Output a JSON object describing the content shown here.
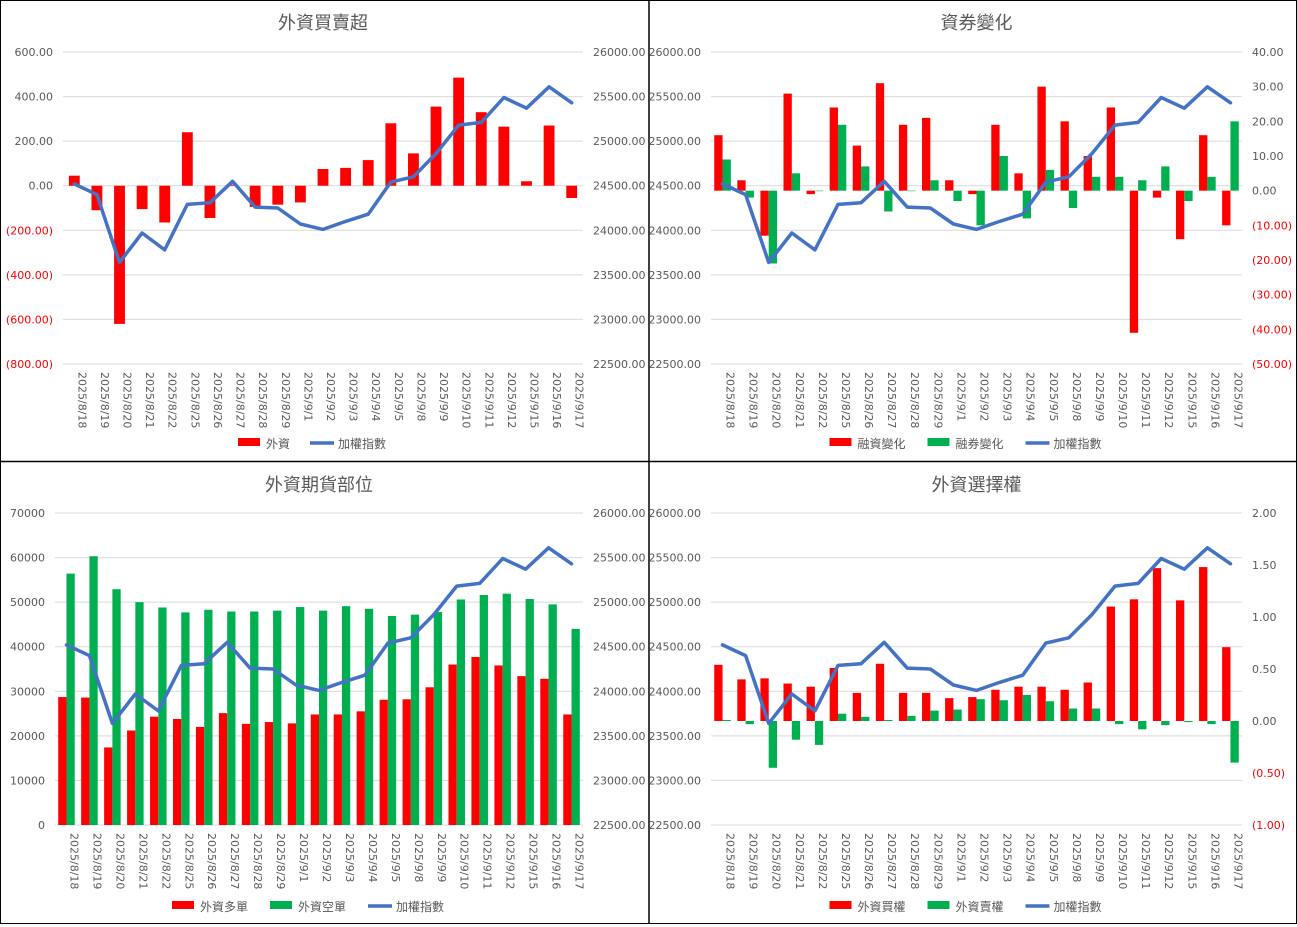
{
  "index_label": "加權指數",
  "dates": [
    "2025/8/18",
    "2025/8/19",
    "2025/8/20",
    "2025/8/21",
    "2025/8/22",
    "2025/8/25",
    "2025/8/26",
    "2025/8/27",
    "2025/8/28",
    "2025/8/29",
    "2025/9/1",
    "2025/9/2",
    "2025/9/3",
    "2025/9/4",
    "2025/9/5",
    "2025/9/8",
    "2025/9/9",
    "2025/9/10",
    "2025/9/11",
    "2025/9/12",
    "2025/9/15",
    "2025/9/16",
    "2025/9/17"
  ],
  "colors": {
    "red": "#ff0000",
    "green": "#00b050",
    "blue": "#4472c4",
    "neg_tick": "#ff0000",
    "tick": "#595959",
    "grid": "#d9d9d9",
    "border": "#000000"
  },
  "chart_data": [
    {
      "type": "bar",
      "title": "外資買賣超",
      "left_axis": {
        "min": -800,
        "max": 600,
        "step": 200,
        "format": "acct2",
        "ticks": [
          "600.00",
          "400.00",
          "200.00",
          "0.00",
          "(200.00)",
          "(400.00)",
          "(600.00)",
          "(800.00)"
        ]
      },
      "right_axis": {
        "min": 22500,
        "max": 26000,
        "step": 500,
        "ticks": [
          "26000.00",
          "25500.00",
          "25000.00",
          "24500.00",
          "24000.00",
          "23500.00",
          "23000.00",
          "22500.00"
        ]
      },
      "series": [
        {
          "name": "外資",
          "kind": "bar",
          "color": "red",
          "axis": "left",
          "values": [
            45,
            -110,
            -620,
            -105,
            -165,
            240,
            -145,
            5,
            -95,
            -85,
            -75,
            75,
            80,
            115,
            280,
            145,
            355,
            485,
            330,
            265,
            20,
            270,
            -55
          ]
        }
      ],
      "line": {
        "name": "加權指數",
        "axis": "right",
        "values": [
          24520,
          24400,
          23640,
          23970,
          23780,
          24290,
          24310,
          24550,
          24260,
          24250,
          24070,
          24010,
          24100,
          24180,
          24540,
          24600,
          24860,
          25180,
          25210,
          25490,
          25370,
          25610,
          25430
        ]
      },
      "legend": [
        "外資",
        "加權指數"
      ]
    },
    {
      "type": "bar",
      "title": "資券變化",
      "left_axis": {
        "min": 22500,
        "max": 26000,
        "step": 500,
        "ticks": [
          "26000.00",
          "25500.00",
          "25000.00",
          "24500.00",
          "24000.00",
          "23500.00",
          "23000.00",
          "22500.00"
        ]
      },
      "right_axis": {
        "min": -50,
        "max": 40,
        "step": 10,
        "format": "acct2",
        "ticks": [
          "40.00",
          "30.00",
          "20.00",
          "10.00",
          "0.00",
          "(10.00)",
          "(20.00)",
          "(30.00)",
          "(40.00)",
          "(50.00)"
        ]
      },
      "series": [
        {
          "name": "融資變化",
          "kind": "bar",
          "color": "red",
          "axis": "right",
          "values": [
            16,
            3,
            -13,
            28,
            -1,
            24,
            13,
            31,
            19,
            21,
            3,
            -1,
            19,
            5,
            30,
            20,
            10,
            24,
            -41,
            -2,
            -14,
            16,
            -10
          ]
        },
        {
          "name": "融券變化",
          "kind": "bar",
          "color": "green",
          "axis": "right",
          "values": [
            9,
            -2,
            -21,
            5,
            0,
            19,
            7,
            -6,
            0,
            3,
            -3,
            -10,
            10,
            -8,
            6,
            -5,
            4,
            4,
            3,
            7,
            -3,
            4,
            20
          ]
        }
      ],
      "line": {
        "name": "加權指數",
        "axis": "left",
        "values": [
          24520,
          24400,
          23640,
          23970,
          23780,
          24290,
          24310,
          24550,
          24260,
          24250,
          24070,
          24010,
          24100,
          24180,
          24540,
          24600,
          24860,
          25180,
          25210,
          25490,
          25370,
          25610,
          25430
        ]
      },
      "legend": [
        "融資變化",
        "融券變化",
        "加權指數"
      ]
    },
    {
      "type": "bar",
      "title": "外資期貨部位",
      "left_axis": {
        "min": 0,
        "max": 70000,
        "step": 10000,
        "ticks": [
          "70000",
          "60000",
          "50000",
          "40000",
          "30000",
          "20000",
          "10000",
          "0"
        ]
      },
      "right_axis": {
        "min": 22500,
        "max": 26000,
        "step": 500,
        "ticks": [
          "26000.00",
          "25500.00",
          "25000.00",
          "24500.00",
          "24000.00",
          "23500.00",
          "23000.00",
          "22500.00"
        ]
      },
      "series": [
        {
          "name": "外資多單",
          "kind": "bar",
          "color": "red",
          "axis": "left",
          "values": [
            28700,
            28600,
            17400,
            21200,
            24300,
            23800,
            22000,
            25100,
            22700,
            23100,
            22800,
            24800,
            24800,
            25500,
            28100,
            28200,
            30900,
            36000,
            37700,
            35800,
            33400,
            32800,
            24800
          ]
        },
        {
          "name": "外資空單",
          "kind": "bar",
          "color": "green",
          "axis": "left",
          "values": [
            56400,
            60300,
            52900,
            50000,
            48800,
            47700,
            48300,
            47900,
            47900,
            48100,
            48900,
            48100,
            49100,
            48500,
            46900,
            47200,
            47800,
            50600,
            51600,
            51900,
            50700,
            49500,
            44000
          ]
        }
      ],
      "line": {
        "name": "加權指數",
        "axis": "right",
        "values": [
          24520,
          24400,
          23640,
          23970,
          23780,
          24290,
          24310,
          24550,
          24260,
          24250,
          24070,
          24010,
          24100,
          24180,
          24540,
          24600,
          24860,
          25180,
          25210,
          25490,
          25370,
          25610,
          25430
        ]
      },
      "legend": [
        "外資多單",
        "外資空單",
        "加權指數"
      ]
    },
    {
      "type": "bar",
      "title": "外資選擇權",
      "left_axis": {
        "min": 22500,
        "max": 26000,
        "step": 500,
        "ticks": [
          "26000.00",
          "25500.00",
          "25000.00",
          "24500.00",
          "24000.00",
          "23500.00",
          "23000.00",
          "22500.00"
        ]
      },
      "right_axis": {
        "min": -1,
        "max": 2,
        "step": 0.5,
        "format": "acct2",
        "ticks": [
          "2.00",
          "1.50",
          "1.00",
          "0.50",
          "0.00",
          "(0.50)",
          "(1.00)"
        ]
      },
      "series": [
        {
          "name": "外資買權",
          "kind": "bar",
          "color": "red",
          "axis": "right",
          "values": [
            0.54,
            0.4,
            0.41,
            0.36,
            0.33,
            0.51,
            0.27,
            0.55,
            0.27,
            0.27,
            0.22,
            0.23,
            0.3,
            0.33,
            0.33,
            0.3,
            0.37,
            1.1,
            1.17,
            1.47,
            1.16,
            1.48,
            0.71
          ]
        },
        {
          "name": "外資賣權",
          "kind": "bar",
          "color": "green",
          "axis": "right",
          "values": [
            0.01,
            -0.03,
            -0.45,
            -0.18,
            -0.23,
            0.07,
            0.04,
            0.01,
            0.05,
            0.1,
            0.11,
            0.21,
            0.2,
            0.25,
            0.19,
            0.12,
            0.12,
            -0.03,
            -0.08,
            -0.04,
            -0.01,
            -0.03,
            -0.4
          ]
        }
      ],
      "line": {
        "name": "加權指數",
        "axis": "left",
        "values": [
          24520,
          24400,
          23640,
          23970,
          23780,
          24290,
          24310,
          24550,
          24260,
          24250,
          24070,
          24010,
          24100,
          24180,
          24540,
          24600,
          24860,
          25180,
          25210,
          25490,
          25370,
          25610,
          25430
        ]
      },
      "legend": [
        "外資買權",
        "外資賣權",
        "加權指數"
      ]
    }
  ]
}
